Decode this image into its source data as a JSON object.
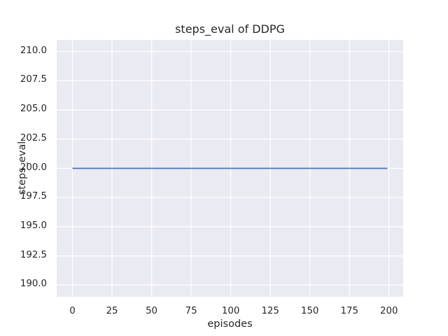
{
  "figure": {
    "background_color": "#ffffff",
    "plot_background_color": "#eaeaf2",
    "grid_color": "#ffffff",
    "text_color": "#262626"
  },
  "chart_data": {
    "type": "line",
    "title": "steps_eval of DDPG",
    "xlabel": "episodes",
    "ylabel": "steps_eval",
    "xlim": [
      -9.95,
      208.95
    ],
    "ylim": [
      189,
      211
    ],
    "grid": true,
    "xticks": {
      "values": [
        0,
        25,
        50,
        75,
        100,
        125,
        150,
        175,
        200
      ],
      "labels": [
        "0",
        "25",
        "50",
        "75",
        "100",
        "125",
        "150",
        "175",
        "200"
      ]
    },
    "yticks": {
      "values": [
        190,
        192.5,
        195,
        197.5,
        200,
        202.5,
        205,
        207.5,
        210
      ],
      "labels": [
        "190.0",
        "192.5",
        "195.0",
        "197.5",
        "200.0",
        "202.5",
        "205.0",
        "207.5",
        "210.0"
      ]
    },
    "series": [
      {
        "name": "DDPG steps_eval",
        "color": "#4c72b0",
        "line_width": 1.8,
        "x": [
          0,
          199
        ],
        "y": [
          200,
          200
        ]
      }
    ]
  }
}
